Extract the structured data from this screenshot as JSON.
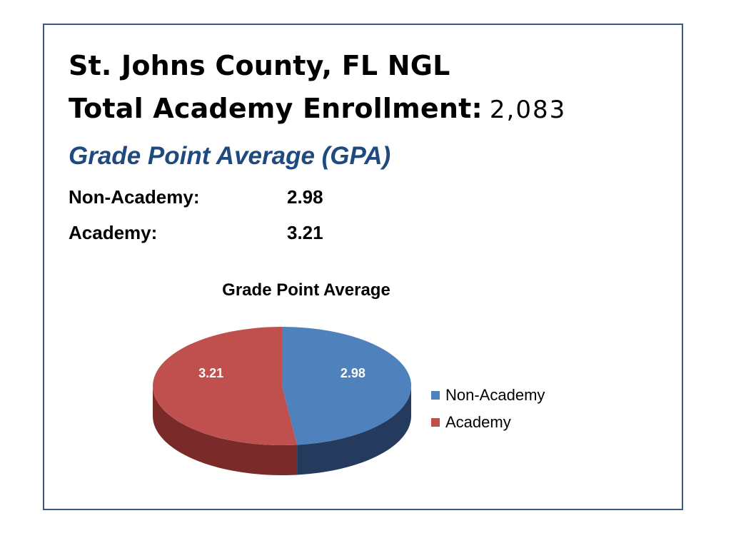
{
  "slide": {
    "title_line1": "St. Johns County, FL NGL",
    "title_line2_label": "Total Academy Enrollment:",
    "title_line2_value": "2,083",
    "subtitle": "Grade Point Average (GPA)",
    "rows": [
      {
        "label": "Non-Academy:",
        "value": "2.98"
      },
      {
        "label": "Academy:",
        "value": "3.21"
      }
    ]
  },
  "colors": {
    "frame": "#3b5a82",
    "subtitle": "#1f4a7e",
    "non_academy": "#4f81bd",
    "non_academy_side": "#243b5e",
    "academy": "#c0504d",
    "academy_side": "#7a2a28"
  },
  "chart_data": {
    "type": "pie",
    "title": "Grade Point Average",
    "categories": [
      "Non-Academy",
      "Academy"
    ],
    "values": [
      2.98,
      3.21
    ],
    "data_labels": [
      "2.98",
      "3.21"
    ],
    "legend_placement": "right",
    "style": "3d"
  }
}
